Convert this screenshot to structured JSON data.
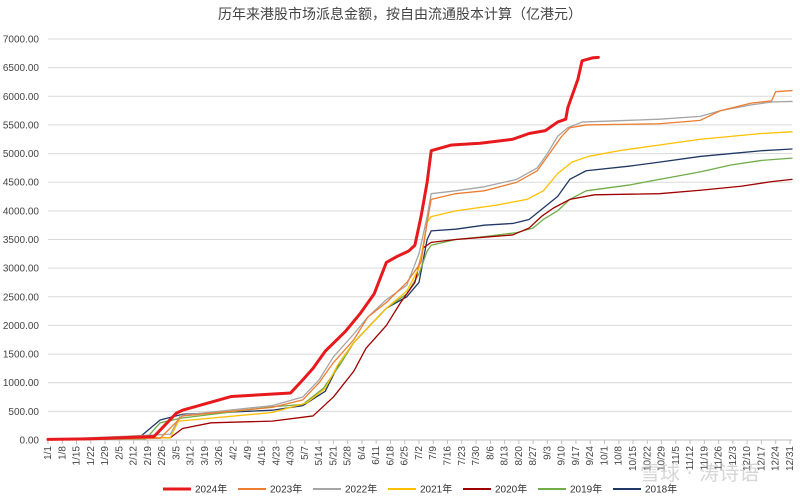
{
  "chart_data": {
    "type": "line",
    "title": "历年来港股市场派息金额，按自由流通股本计算（亿港元）",
    "ylim": [
      0,
      7000
    ],
    "y_ticks": [
      "0.00",
      "500.00",
      "1000.00",
      "1500.00",
      "2000.00",
      "2500.00",
      "3000.00",
      "3500.00",
      "4000.00",
      "4500.00",
      "5000.00",
      "5500.00",
      "6000.00",
      "6500.00",
      "7000.00"
    ],
    "x_tick_labels": [
      "1/1",
      "1/8",
      "1/15",
      "1/22",
      "1/29",
      "2/5",
      "2/12",
      "2/19",
      "2/26",
      "3/5",
      "3/12",
      "3/19",
      "3/26",
      "4/2",
      "4/9",
      "4/16",
      "4/23",
      "4/30",
      "5/7",
      "5/14",
      "5/21",
      "5/28",
      "6/4",
      "6/11",
      "6/18",
      "6/25",
      "7/2",
      "7/9",
      "7/16",
      "7/23",
      "7/30",
      "8/6",
      "8/13",
      "8/20",
      "8/27",
      "9/3",
      "9/10",
      "9/17",
      "9/24",
      "10/1",
      "10/8",
      "10/15",
      "10/22",
      "10/29",
      "11/5",
      "11/12",
      "11/19",
      "11/26",
      "12/3",
      "12/10",
      "12/17",
      "12/24",
      "12/31"
    ],
    "x_unit": "day of year",
    "grid": true,
    "legend_position": "bottom",
    "series": [
      {
        "name": "2024年",
        "color": "#e8191c",
        "width": 3,
        "points": [
          [
            0,
            10
          ],
          [
            20,
            20
          ],
          [
            52,
            60
          ],
          [
            63,
            470
          ],
          [
            66,
            520
          ],
          [
            90,
            760
          ],
          [
            119,
            820
          ],
          [
            125,
            1050
          ],
          [
            130,
            1250
          ],
          [
            136,
            1550
          ],
          [
            146,
            1900
          ],
          [
            153,
            2200
          ],
          [
            160,
            2550
          ],
          [
            166,
            3100
          ],
          [
            171,
            3200
          ],
          [
            177,
            3300
          ],
          [
            180,
            3400
          ],
          [
            183,
            3900
          ],
          [
            186,
            4500
          ],
          [
            188,
            5050
          ],
          [
            198,
            5150
          ],
          [
            212,
            5180
          ],
          [
            228,
            5250
          ],
          [
            236,
            5350
          ],
          [
            244,
            5400
          ],
          [
            250,
            5550
          ],
          [
            254,
            5600
          ],
          [
            255,
            5800
          ],
          [
            257,
            6000
          ],
          [
            260,
            6300
          ],
          [
            262,
            6620
          ],
          [
            267,
            6670
          ],
          [
            270,
            6680
          ]
        ]
      },
      {
        "name": "2023年",
        "color": "#ed7d31",
        "width": 1.3,
        "points": [
          [
            0,
            5
          ],
          [
            55,
            30
          ],
          [
            62,
            280
          ],
          [
            66,
            420
          ],
          [
            110,
            570
          ],
          [
            125,
            700
          ],
          [
            133,
            1000
          ],
          [
            140,
            1350
          ],
          [
            150,
            1750
          ],
          [
            157,
            2150
          ],
          [
            166,
            2400
          ],
          [
            176,
            2750
          ],
          [
            183,
            3100
          ],
          [
            186,
            3800
          ],
          [
            188,
            4200
          ],
          [
            200,
            4300
          ],
          [
            214,
            4350
          ],
          [
            230,
            4500
          ],
          [
            240,
            4700
          ],
          [
            246,
            5000
          ],
          [
            252,
            5300
          ],
          [
            256,
            5450
          ],
          [
            264,
            5500
          ],
          [
            300,
            5520
          ],
          [
            320,
            5580
          ],
          [
            330,
            5750
          ],
          [
            345,
            5880
          ],
          [
            355,
            5920
          ],
          [
            357,
            6080
          ],
          [
            365,
            6100
          ]
        ]
      },
      {
        "name": "2022年",
        "color": "#a5a5a5",
        "width": 1.3,
        "points": [
          [
            0,
            8
          ],
          [
            60,
            100
          ],
          [
            65,
            430
          ],
          [
            110,
            600
          ],
          [
            125,
            750
          ],
          [
            133,
            1050
          ],
          [
            140,
            1450
          ],
          [
            150,
            1850
          ],
          [
            157,
            2150
          ],
          [
            166,
            2450
          ],
          [
            176,
            2700
          ],
          [
            182,
            3250
          ],
          [
            186,
            3900
          ],
          [
            188,
            4300
          ],
          [
            200,
            4350
          ],
          [
            214,
            4420
          ],
          [
            230,
            4550
          ],
          [
            240,
            4750
          ],
          [
            245,
            5000
          ],
          [
            250,
            5300
          ],
          [
            255,
            5450
          ],
          [
            262,
            5550
          ],
          [
            300,
            5600
          ],
          [
            320,
            5650
          ],
          [
            330,
            5750
          ],
          [
            345,
            5850
          ],
          [
            355,
            5900
          ],
          [
            365,
            5910
          ]
        ]
      },
      {
        "name": "2021年",
        "color": "#ffc000",
        "width": 1.3,
        "points": [
          [
            0,
            5
          ],
          [
            60,
            40
          ],
          [
            64,
            330
          ],
          [
            110,
            480
          ],
          [
            127,
            650
          ],
          [
            136,
            900
          ],
          [
            142,
            1300
          ],
          [
            150,
            1700
          ],
          [
            158,
            2000
          ],
          [
            166,
            2300
          ],
          [
            176,
            2600
          ],
          [
            182,
            3000
          ],
          [
            186,
            3800
          ],
          [
            188,
            3900
          ],
          [
            200,
            4000
          ],
          [
            220,
            4100
          ],
          [
            235,
            4200
          ],
          [
            243,
            4350
          ],
          [
            250,
            4650
          ],
          [
            257,
            4850
          ],
          [
            265,
            4950
          ],
          [
            280,
            5050
          ],
          [
            300,
            5150
          ],
          [
            320,
            5250
          ],
          [
            335,
            5300
          ],
          [
            350,
            5350
          ],
          [
            365,
            5380
          ]
        ]
      },
      {
        "name": "2020年",
        "color": "#a00000",
        "width": 1.3,
        "points": [
          [
            0,
            5
          ],
          [
            60,
            40
          ],
          [
            66,
            200
          ],
          [
            80,
            300
          ],
          [
            110,
            330
          ],
          [
            130,
            420
          ],
          [
            140,
            750
          ],
          [
            150,
            1200
          ],
          [
            156,
            1600
          ],
          [
            166,
            2000
          ],
          [
            173,
            2400
          ],
          [
            180,
            2750
          ],
          [
            184,
            3350
          ],
          [
            188,
            3450
          ],
          [
            200,
            3500
          ],
          [
            214,
            3540
          ],
          [
            228,
            3580
          ],
          [
            236,
            3700
          ],
          [
            242,
            3900
          ],
          [
            248,
            4050
          ],
          [
            256,
            4200
          ],
          [
            268,
            4280
          ],
          [
            300,
            4300
          ],
          [
            320,
            4360
          ],
          [
            340,
            4430
          ],
          [
            355,
            4510
          ],
          [
            365,
            4550
          ]
        ]
      },
      {
        "name": "2019年",
        "color": "#70ad47",
        "width": 1.3,
        "points": [
          [
            0,
            5
          ],
          [
            48,
            20
          ],
          [
            55,
            300
          ],
          [
            65,
            380
          ],
          [
            110,
            580
          ],
          [
            125,
            620
          ],
          [
            135,
            900
          ],
          [
            143,
            1300
          ],
          [
            150,
            1700
          ],
          [
            158,
            2000
          ],
          [
            166,
            2300
          ],
          [
            176,
            2550
          ],
          [
            182,
            2900
          ],
          [
            186,
            3300
          ],
          [
            188,
            3400
          ],
          [
            200,
            3500
          ],
          [
            214,
            3550
          ],
          [
            230,
            3620
          ],
          [
            238,
            3700
          ],
          [
            243,
            3850
          ],
          [
            250,
            4000
          ],
          [
            256,
            4200
          ],
          [
            264,
            4350
          ],
          [
            285,
            4450
          ],
          [
            300,
            4550
          ],
          [
            320,
            4680
          ],
          [
            335,
            4800
          ],
          [
            350,
            4880
          ],
          [
            365,
            4920
          ]
        ]
      },
      {
        "name": "2018年",
        "color": "#203864",
        "width": 1.3,
        "points": [
          [
            0,
            5
          ],
          [
            45,
            50
          ],
          [
            55,
            350
          ],
          [
            66,
            450
          ],
          [
            110,
            520
          ],
          [
            125,
            600
          ],
          [
            136,
            850
          ],
          [
            143,
            1350
          ],
          [
            150,
            1700
          ],
          [
            158,
            2000
          ],
          [
            166,
            2300
          ],
          [
            176,
            2500
          ],
          [
            182,
            2750
          ],
          [
            186,
            3500
          ],
          [
            188,
            3650
          ],
          [
            200,
            3680
          ],
          [
            214,
            3750
          ],
          [
            228,
            3780
          ],
          [
            236,
            3850
          ],
          [
            243,
            4050
          ],
          [
            250,
            4250
          ],
          [
            256,
            4550
          ],
          [
            264,
            4700
          ],
          [
            285,
            4780
          ],
          [
            300,
            4850
          ],
          [
            320,
            4950
          ],
          [
            335,
            5000
          ],
          [
            350,
            5050
          ],
          [
            365,
            5080
          ]
        ]
      }
    ]
  },
  "watermark": "雪球 · 涛诗语"
}
